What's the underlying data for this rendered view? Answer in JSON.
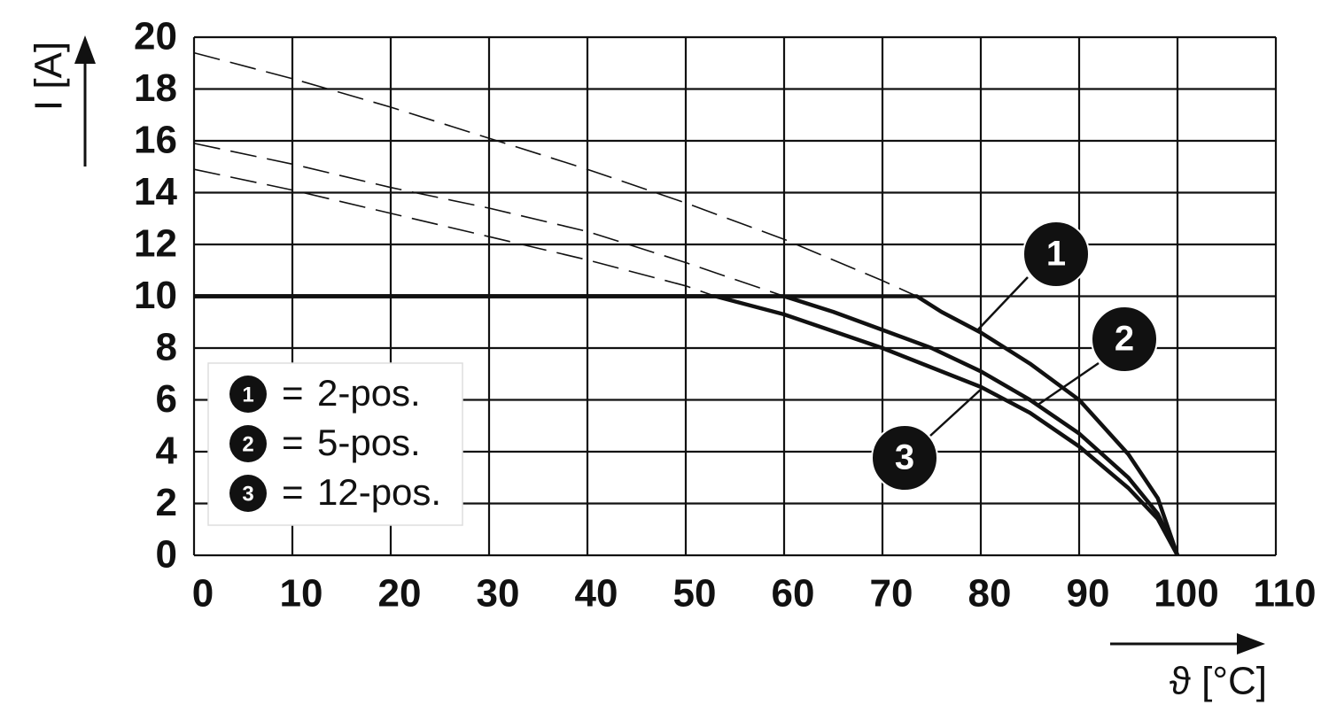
{
  "chart_data": {
    "type": "line",
    "y_label": "I [A]",
    "x_label": "ϑ [°C]",
    "xlim": [
      0,
      110
    ],
    "ylim": [
      0,
      20
    ],
    "xticks": [
      0,
      10,
      20,
      30,
      40,
      50,
      60,
      70,
      80,
      90,
      100,
      110
    ],
    "yticks": [
      0,
      2,
      4,
      6,
      8,
      10,
      12,
      14,
      16,
      18,
      20
    ],
    "grid": true,
    "legend": "lower left",
    "legend_separator": "=",
    "series": [
      {
        "name": "2-pos.",
        "marker": "1",
        "style": "solid",
        "color": "#111111",
        "x": [
          0,
          73.5,
          76,
          80,
          85,
          90,
          95,
          98,
          100
        ],
        "values": [
          10,
          10,
          9.4,
          8.6,
          7.4,
          6.0,
          3.9,
          2.2,
          0
        ]
      },
      {
        "name": "5-pos.",
        "marker": "2",
        "style": "solid",
        "color": "#111111",
        "x": [
          0,
          60,
          65,
          70,
          75,
          80,
          85,
          90,
          95,
          98,
          100
        ],
        "values": [
          10,
          10,
          9.4,
          8.7,
          8.0,
          7.1,
          6.0,
          4.7,
          3.0,
          1.6,
          0
        ]
      },
      {
        "name": "12-pos.",
        "marker": "3",
        "style": "solid",
        "color": "#111111",
        "x": [
          0,
          53,
          60,
          70,
          80,
          85,
          90,
          95,
          98,
          100
        ],
        "values": [
          10,
          10,
          9.3,
          8.0,
          6.5,
          5.5,
          4.2,
          2.6,
          1.4,
          0
        ]
      },
      {
        "style": "dashed",
        "color": "#111111",
        "x": [
          0,
          10,
          20,
          30,
          40,
          50,
          60,
          70,
          73.5
        ],
        "values": [
          19.4,
          18.4,
          17.3,
          16.1,
          14.9,
          13.6,
          12.2,
          10.6,
          10
        ]
      },
      {
        "style": "dashed",
        "color": "#111111",
        "x": [
          0,
          10,
          20,
          30,
          40,
          50,
          60
        ],
        "values": [
          15.9,
          15.1,
          14.2,
          13.4,
          12.5,
          11.3,
          10
        ]
      },
      {
        "style": "dashed",
        "color": "#111111",
        "x": [
          0,
          10,
          20,
          30,
          40,
          50,
          53
        ],
        "values": [
          14.9,
          14.1,
          13.2,
          12.3,
          11.4,
          10.4,
          10
        ]
      }
    ]
  }
}
